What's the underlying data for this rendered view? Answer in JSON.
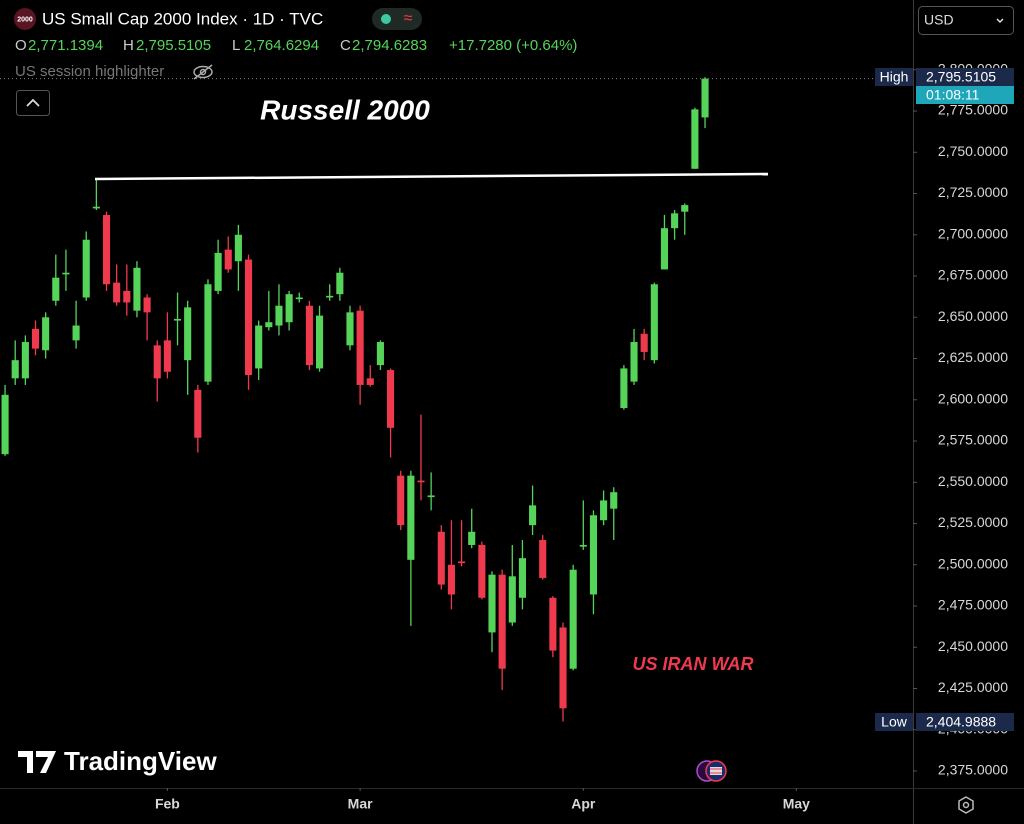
{
  "header": {
    "icon": "2000",
    "title": "US Small Cap 2000 Index · 1D · TVC",
    "ohlc": [
      {
        "key": "O",
        "value": "2,771.1394"
      },
      {
        "key": "H",
        "value": "2,795.5105"
      },
      {
        "key": "L",
        "value": "2,764.6294"
      },
      {
        "key": "C",
        "value": "2,794.6283"
      }
    ],
    "change": "+17.7280 (+0.64%)",
    "indicator": "US session highlighter",
    "currency": "USD",
    "logo": "TradingView"
  },
  "price_tags": [
    {
      "name": "High",
      "value": "2,795.5105"
    },
    {
      "name": "Low",
      "value": "2,404.9888"
    }
  ],
  "countdown": "01:08:11",
  "chart_data": {
    "type": "candlestick",
    "annotations": [
      "Russell 2000",
      "US IRAN WAR"
    ],
    "up_color": "#56d45a",
    "down_color": "#ef3a4e",
    "open": [
      2567,
      2613,
      2613,
      2643,
      2630,
      2660,
      2676,
      2636,
      2662,
      2716,
      2712,
      2671,
      2666,
      2654,
      2662,
      2633,
      2636,
      2648,
      2624,
      2606,
      2611,
      2666,
      2691,
      2684,
      2685,
      2619,
      2644,
      2645,
      2647,
      2661,
      2657,
      2619,
      2662,
      2664,
      2633,
      2654,
      2613,
      2621,
      2618,
      2554,
      2503,
      2551,
      2541,
      2520,
      2500,
      2502,
      2512,
      2512,
      2459,
      2494,
      2465,
      2480,
      2524,
      2515,
      2480,
      2462,
      2437,
      2511,
      2482,
      2527,
      2534,
      2595,
      2611,
      2640,
      2624,
      2679,
      2704,
      2714,
      2740,
      2771.1394
    ],
    "high": [
      2609,
      2636,
      2639,
      2648,
      2653,
      2688,
      2691,
      2660,
      2702,
      2734,
      2714,
      2682,
      2682,
      2684,
      2664,
      2636,
      2653,
      2665,
      2660,
      2609,
      2673,
      2697,
      2699,
      2706,
      2688,
      2648,
      2666,
      2670,
      2666,
      2665,
      2660,
      2657,
      2670,
      2680,
      2657,
      2657,
      2621,
      2636,
      2619,
      2557,
      2557,
      2591,
      2556,
      2524,
      2527,
      2527,
      2534,
      2514,
      2496,
      2497,
      2512,
      2515,
      2548,
      2518,
      2481,
      2465,
      2500,
      2539,
      2533,
      2545,
      2547,
      2621,
      2643,
      2643,
      2671,
      2712,
      2715,
      2719,
      2777,
      2795.5105
    ],
    "low": [
      2566,
      2609,
      2609,
      2627,
      2625,
      2657,
      2666,
      2631,
      2660,
      2715,
      2666,
      2657,
      2651,
      2650,
      2636,
      2599,
      2613,
      2633,
      2603,
      2568,
      2609,
      2664,
      2677,
      2666,
      2606,
      2612,
      2642,
      2639,
      2642,
      2659,
      2618,
      2617,
      2660,
      2660,
      2630,
      2597,
      2608,
      2618,
      2565,
      2521,
      2463,
      2539,
      2533,
      2485,
      2473,
      2499,
      2510,
      2479,
      2447,
      2424,
      2463,
      2473,
      2518,
      2491,
      2444,
      2404.9888,
      2436,
      2509,
      2470,
      2524,
      2515,
      2594,
      2609,
      2624,
      2622,
      2679,
      2697,
      2700,
      2740,
      2764.6294
    ],
    "close": [
      2603,
      2624,
      2635,
      2631,
      2650,
      2674,
      2677,
      2645,
      2697,
      2717,
      2670,
      2659,
      2659,
      2680,
      2653,
      2613,
      2617,
      2649,
      2656,
      2577,
      2670,
      2689,
      2679,
      2700,
      2615,
      2645,
      2647,
      2657,
      2664,
      2662,
      2621,
      2651,
      2663,
      2677,
      2653,
      2609,
      2609,
      2635,
      2583,
      2524,
      2554,
      2550,
      2542,
      2488,
      2482,
      2501,
      2520,
      2480,
      2494,
      2437,
      2493,
      2504,
      2536,
      2492,
      2448,
      2413,
      2497,
      2512,
      2530,
      2539,
      2544,
      2619,
      2635,
      2629,
      2670,
      2704,
      2713,
      2718,
      2776,
      2794.6283
    ],
    "xlim": [
      -0.5,
      89.5
    ],
    "xticks": [
      {
        "value": 16,
        "label": "Feb"
      },
      {
        "value": 35,
        "label": "Mar"
      },
      {
        "value": 57,
        "label": "Apr"
      },
      {
        "value": 78,
        "label": "May"
      }
    ],
    "ylim": [
      2364.7,
      2842.3
    ],
    "yticks": [
      {
        "value": 2375,
        "label": "2,375.0000"
      },
      {
        "value": 2400,
        "label": "2,400.0000"
      },
      {
        "value": 2425,
        "label": "2,425.0000"
      },
      {
        "value": 2450,
        "label": "2,450.0000"
      },
      {
        "value": 2475,
        "label": "2,475.0000"
      },
      {
        "value": 2500,
        "label": "2,500.0000"
      },
      {
        "value": 2525,
        "label": "2,525.0000"
      },
      {
        "value": 2550,
        "label": "2,550.0000"
      },
      {
        "value": 2575,
        "label": "2,575.0000"
      },
      {
        "value": 2600,
        "label": "2,600.0000"
      },
      {
        "value": 2625,
        "label": "2,625.0000"
      },
      {
        "value": 2650,
        "label": "2,650.0000"
      },
      {
        "value": 2675,
        "label": "2,675.0000"
      },
      {
        "value": 2700,
        "label": "2,700.0000"
      },
      {
        "value": 2725,
        "label": "2,725.0000"
      },
      {
        "value": 2750,
        "label": "2,750.0000"
      },
      {
        "value": 2775,
        "label": "2,775.0000"
      },
      {
        "value": 2800,
        "label": "2,800.0000"
      }
    ],
    "grid": false
  }
}
